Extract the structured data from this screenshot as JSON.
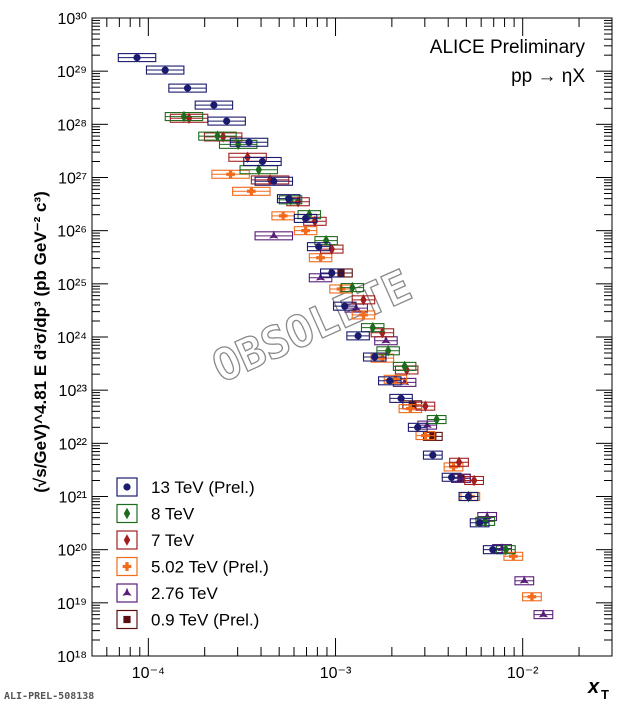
{
  "chart_data": {
    "type": "scatter",
    "header": {
      "line1": "ALICE Preliminary",
      "line2": "pp → ηX"
    },
    "watermark": "OBSOLETE",
    "footer_id": "ALI-PREL-508138",
    "xlabel": "x",
    "xlabel_sub": "T",
    "ylabel": "(√s/GeV)^4.81 E d³σ/dp³ (pb GeV⁻² c³)",
    "x_scale": "log",
    "y_scale": "log",
    "xlim": [
      5e-05,
      0.03
    ],
    "ylim": [
      1e+18,
      1e+30
    ],
    "x_tick_labels": [
      "10⁻⁴",
      "10⁻³",
      "10⁻²"
    ],
    "y_tick_labels": [
      "10¹⁸",
      "10¹⁹",
      "10²⁰",
      "10²¹",
      "10²²",
      "10²³",
      "10²⁴",
      "10²⁵",
      "10²⁶",
      "10²⁷",
      "10²⁸",
      "10²⁹",
      "10³⁰"
    ],
    "legend_position": "bottom-left",
    "series": [
      {
        "name": "13 TeV (Prel.)",
        "color": "#1a1a6e",
        "marker": "circle",
        "x": [
          8.7e-05,
          0.000123,
          0.000162,
          0.000224,
          0.000262,
          0.000345,
          0.000407,
          0.000468,
          0.000562,
          0.000692,
          0.000813,
          0.000955,
          0.00112,
          0.00132,
          0.00162,
          0.00195,
          0.00224,
          0.00275,
          0.00331,
          0.00417,
          0.00513,
          0.00589,
          0.00692
        ],
        "y": [
          1.8e+29,
          1.05e+29,
          4.8e+28,
          2.3e+28,
          1.15e+28,
          4.6e+27,
          2e+27,
          8.5e+26,
          4e+26,
          1.7e+26,
          5e+25,
          1.6e+25,
          3.8e+24,
          1.05e+24,
          4.2e+23,
          1.5e+23,
          7e+22,
          2e+22,
          6e+21,
          2.3e+21,
          1e+21,
          3.2e+20,
          1e+20
        ]
      },
      {
        "name": "8 TeV",
        "color": "#1e6b1e",
        "marker": "diamond",
        "x": [
          0.000155,
          0.000234,
          0.000302,
          0.000389,
          0.000575,
          0.000724,
          0.000891,
          0.00123,
          0.00158,
          0.00191,
          0.00234,
          0.00347,
          0.00513,
          0.00631,
          0.00813
        ],
        "y": [
          1.4e+28,
          6e+27,
          4.2e+27,
          1.4e+27,
          3.8e+26,
          2e+26,
          6.5e+25,
          8.5e+24,
          1.5e+24,
          5.5e+23,
          2.8e+23,
          2.8e+22,
          1e+21,
          3.4e+20,
          1e+20
        ]
      },
      {
        "name": "7 TeV",
        "color": "#a31f1f",
        "marker": "diamond",
        "x": [
          0.000165,
          0.000251,
          0.000339,
          0.000447,
          0.000631,
          0.000776,
          0.000955,
          0.00141,
          0.00178,
          0.0024,
          0.00302,
          0.00457,
          0.0055
        ],
        "y": [
          1.3e+28,
          5.8e+27,
          2.4e+27,
          9e+26,
          3.5e+26,
          1.5e+26,
          4.5e+25,
          5e+24,
          1.2e+24,
          2.4e+23,
          5e+22,
          4.4e+21,
          2e+21
        ]
      },
      {
        "name": "5.02 TeV (Prel.)",
        "color": "#f26a1b",
        "marker": "cross",
        "x": [
          0.000275,
          0.000355,
          0.000525,
          0.000692,
          0.000832,
          0.00107,
          0.00141,
          0.00178,
          0.00209,
          0.00251,
          0.00302,
          0.00427,
          0.00525,
          0.00891,
          0.0112
        ],
        "y": [
          1.15e+27,
          5.5e+26,
          1.9e+26,
          1e+26,
          3.1e+25,
          8e+24,
          2.6e+24,
          4e+23,
          1.6e+23,
          4.5e+22,
          1.4e+22,
          3.6e+21,
          1e+21,
          7.5e+19,
          1.3e+19
        ]
      },
      {
        "name": "2.76 TeV",
        "color": "#5a1d7a",
        "marker": "star",
        "x": [
          0.000468,
          0.000832,
          0.00129,
          0.00186,
          0.00234,
          0.00309,
          0.00468,
          0.00646,
          0.00776,
          0.0102,
          0.0129
        ],
        "y": [
          8e+25,
          1.3e+25,
          3.5e+24,
          8.5e+23,
          1.4e+23,
          2.2e+22,
          2.2e+21,
          4.2e+20,
          1.05e+20,
          2.6e+19,
          6e+18
        ]
      },
      {
        "name": "0.9 TeV (Prel.)",
        "color": "#5c0f0f",
        "marker": "square",
        "x": [
          0.00107,
          0.00257,
          0.00331,
          0.00468
        ],
        "y": [
          1.6e+25,
          5.3e+22,
          1.35e+22,
          2.2e+21
        ]
      }
    ]
  }
}
